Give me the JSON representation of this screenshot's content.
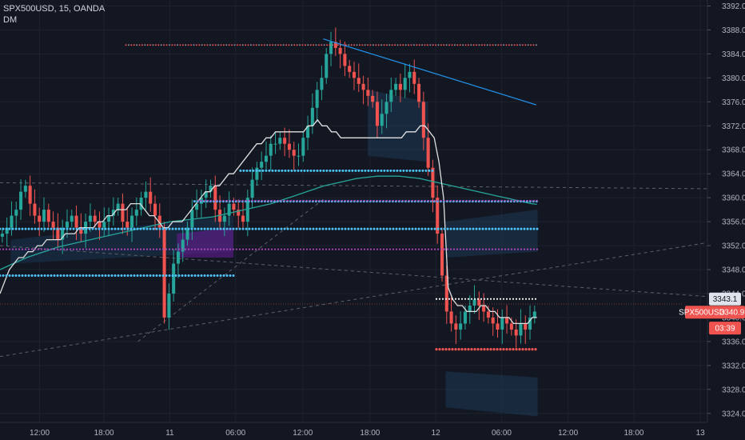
{
  "header": {
    "symbol_line": "SPX500USD, 15, OANDA",
    "indicator_line": "DM"
  },
  "colors": {
    "background": "#131722",
    "grid": "#1e222d",
    "up": "#26a69a",
    "down": "#ef5350",
    "cyan": "#4fc3f7",
    "magenta": "#ab47bc",
    "white": "#e0e0e0",
    "teal_ma": "#26a69a",
    "trend": "#2196f3",
    "axis_text": "#b2b5be"
  },
  "price_tags": [
    {
      "label": "3343.1",
      "value": 3343.1,
      "bg": "#e0e3eb",
      "fg": "#131722"
    },
    {
      "label": "SPX500USD",
      "value": 3340.9,
      "bg": "#ef5350",
      "fg": "#ffffff"
    },
    {
      "label": "3340.9",
      "value": 3340.9,
      "bg": "#ef5350",
      "fg": "#ffffff"
    },
    {
      "label": "03:39",
      "value": 3338.9,
      "bg": "#ef5350",
      "fg": "#ffffff"
    }
  ],
  "chart_data": {
    "type": "candlestick",
    "symbol": "SPX500USD",
    "interval": "15",
    "exchange": "OANDA",
    "y_ticks": [
      3324.0,
      3328.0,
      3332.0,
      3336.0,
      3340.0,
      3344.0,
      3348.0,
      3352.0,
      3356.0,
      3360.0,
      3364.0,
      3368.0,
      3372.0,
      3376.0,
      3380.0,
      3384.0,
      3388.0,
      3392.0
    ],
    "y_range": [
      3322.5,
      3393.0
    ],
    "x_ticks": [
      "12:00",
      "18:00",
      "11",
      "06:00",
      "12:00",
      "18:00",
      "12",
      "06:00",
      "12:00",
      "18:00",
      "13"
    ],
    "last_price": 3340.9,
    "countdown": "03:39",
    "close_path": [
      3354,
      3355,
      3357,
      3358,
      3361,
      3362,
      3359,
      3357,
      3356,
      3358,
      3356,
      3355,
      3353,
      3355,
      3356,
      3357,
      3355,
      3354,
      3356,
      3357,
      3356,
      3355,
      3356,
      3357,
      3358,
      3359,
      3356,
      3355,
      3357,
      3358,
      3360,
      3361,
      3359,
      3357,
      3355,
      3340,
      3344,
      3349,
      3351,
      3353,
      3355,
      3358,
      3359,
      3360,
      3361,
      3362,
      3358,
      3356,
      3357,
      3359,
      3358,
      3357,
      3356,
      3360,
      3363,
      3365,
      3366,
      3367,
      3369,
      3369,
      3370,
      3369,
      3368,
      3367,
      3367,
      3370,
      3372,
      3375,
      3378,
      3380,
      3384,
      3386,
      3385,
      3384,
      3382,
      3381,
      3380,
      3379,
      3378,
      3377,
      3376,
      3372,
      3374,
      3376,
      3378,
      3379,
      3378,
      3380,
      3381,
      3379,
      3376,
      3370,
      3365,
      3360,
      3354,
      3347,
      3341,
      3339,
      3338,
      3339,
      3341,
      3342,
      3343,
      3342,
      3341,
      3340,
      3339,
      3338,
      3340,
      3339,
      3338,
      3337,
      3339,
      3338,
      3340,
      3341
    ],
    "white_ma": [
      3344,
      3346,
      3348,
      3349,
      3350,
      3350,
      3351,
      3351,
      3352,
      3352,
      3353,
      3353,
      3353,
      3353,
      3354,
      3354,
      3354,
      3355,
      3355,
      3355,
      3355,
      3356,
      3356,
      3357,
      3357,
      3358,
      3358,
      3358,
      3359,
      3359,
      3359,
      3358,
      3357,
      3357,
      3356,
      3355,
      3355,
      3356,
      3356,
      3356,
      3357,
      3358,
      3359,
      3360,
      3361,
      3361,
      3362,
      3362,
      3363,
      3364,
      3364,
      3365,
      3366,
      3367,
      3368,
      3369,
      3369,
      3370,
      3370,
      3371,
      3371,
      3371,
      3371,
      3371,
      3371,
      3371,
      3372,
      3372,
      3373,
      3372,
      3372,
      3371,
      3371,
      3370,
      3370,
      3370,
      3370,
      3370,
      3370,
      3370,
      3370,
      3370,
      3370,
      3370,
      3370,
      3370,
      3370,
      3371,
      3371,
      3371,
      3372,
      3372,
      3371,
      3370,
      3366,
      3360,
      3345,
      3343,
      3342,
      3342,
      3341,
      3341,
      3341,
      3342,
      3342,
      3341,
      3341,
      3340,
      3340,
      3340,
      3339,
      3339,
      3339,
      3339,
      3340,
      3340
    ],
    "teal_ma": [
      3348,
      3348.4,
      3348.8,
      3349.2,
      3349.6,
      3350,
      3350.3,
      3350.6,
      3350.9,
      3351.2,
      3351.5,
      3351.8,
      3352,
      3352.2,
      3352.4,
      3352.6,
      3352.8,
      3353,
      3353.2,
      3353.4,
      3353.6,
      3353.8,
      3354,
      3354.2,
      3354.4,
      3354.6,
      3354.8,
      3355,
      3355.2,
      3355.4,
      3355.6,
      3355.8,
      3356,
      3356.1,
      3356.2,
      3356.3,
      3356.4,
      3356.5,
      3356.6,
      3356.7,
      3356.8,
      3357,
      3357.2,
      3357.4,
      3357.6,
      3357.8,
      3358,
      3358.2,
      3358.4,
      3358.6,
      3358.8,
      3359,
      3359.3,
      3359.6,
      3359.9,
      3360.2,
      3360.5,
      3360.8,
      3361.1,
      3361.4,
      3361.7,
      3362,
      3362.2,
      3362.4,
      3362.6,
      3362.8,
      3363,
      3363.2,
      3363.3,
      3363.4,
      3363.5,
      3363.6,
      3363.6,
      3363.6,
      3363.6,
      3363.6,
      3363.5,
      3363.4,
      3363.3,
      3363.2,
      3363,
      3362.8,
      3362.6,
      3362.4,
      3362.2,
      3362,
      3361.8,
      3361.6,
      3361.4,
      3361.2,
      3361,
      3360.8,
      3360.6,
      3360.4,
      3360.2,
      3360,
      3359.8,
      3359.6,
      3359.4,
      3359.2,
      3359,
      3358.9
    ],
    "cyan_dots": [
      {
        "y": 3347.0,
        "x_from": 0.0,
        "x_to": 0.33
      },
      {
        "y": 3364.5,
        "x_from": 0.34,
        "x_to": 0.615
      },
      {
        "y": 3359.4,
        "x_from": 0.275,
        "x_to": 0.76
      },
      {
        "y": 3354.8,
        "x_from": 0.0,
        "x_to": 0.76
      }
    ],
    "magenta_dots": [
      {
        "y": 3351.4,
        "x_from": 0.0,
        "x_to": 0.76
      },
      {
        "y": 3359.5,
        "x_from": 0.28,
        "x_to": 0.76
      }
    ],
    "red_dots": [
      {
        "y": 3334.7,
        "x_from": 0.617,
        "x_to": 0.76
      }
    ],
    "white_dots": [
      {
        "y": 3343.1,
        "x_from": 0.617,
        "x_to": 0.76
      }
    ],
    "top_markers": {
      "y": 3385.5,
      "x_from": 0.178,
      "x_to": 0.76
    },
    "trend_line": {
      "from": [
        0.457,
        3386.5
      ],
      "to": [
        0.758,
        3375.5
      ]
    }
  }
}
